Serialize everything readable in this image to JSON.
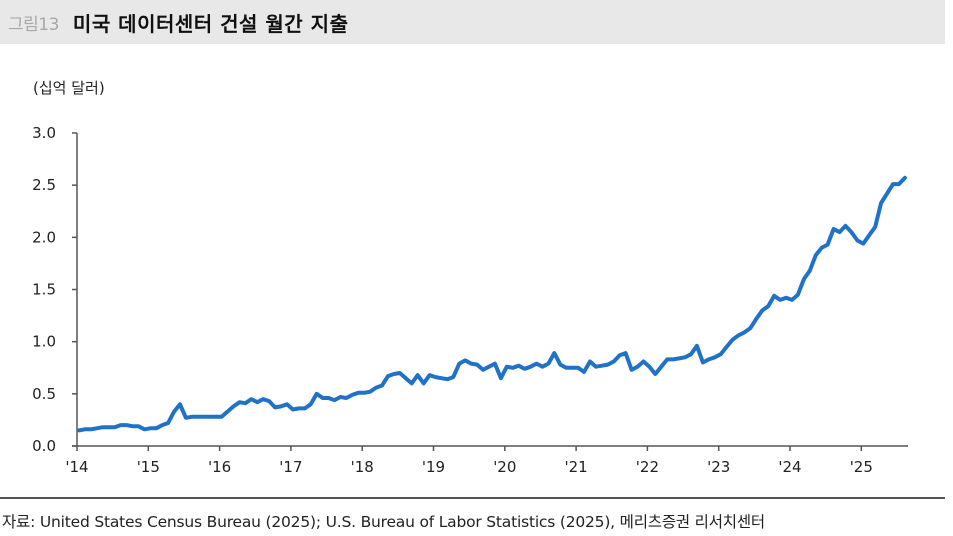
{
  "header": {
    "figure_label": "그림13",
    "title": "미국 데이터센터 건설 월간 지출"
  },
  "unit_label": "(십억 달러)",
  "footer": {
    "source": "자료: United States Census Bureau (2025); U.S. Bureau of Labor Statistics (2025), 메리츠증권 리서치센터"
  },
  "colors": {
    "line": "#1f72c8",
    "axis": "#555555",
    "title_bar_bg": "#e8e8e8"
  },
  "chart_data": {
    "type": "line",
    "title": "미국 데이터센터 건설 월간 지출",
    "xlabel": "",
    "ylabel": "(십억 달러)",
    "ylim": [
      0,
      3.0
    ],
    "yticks": [
      "0.0",
      "0.5",
      "1.0",
      "1.5",
      "2.0",
      "2.5",
      "3.0"
    ],
    "xticks": [
      "'14",
      "'15",
      "'16",
      "'17",
      "'18",
      "'19",
      "'20",
      "'21",
      "'22",
      "'23",
      "'24",
      "'25"
    ],
    "grid": false,
    "legend": null,
    "x_start": "2014-01",
    "x_end": "2025-08",
    "frequency": "monthly",
    "series": [
      {
        "name": "US data center construction spending",
        "values": [
          0.15,
          0.16,
          0.16,
          0.17,
          0.18,
          0.18,
          0.18,
          0.2,
          0.2,
          0.19,
          0.19,
          0.16,
          0.17,
          0.17,
          0.2,
          0.22,
          0.33,
          0.4,
          0.27,
          0.28,
          0.28,
          0.28,
          0.28,
          0.28,
          0.28,
          0.33,
          0.38,
          0.42,
          0.41,
          0.45,
          0.42,
          0.45,
          0.43,
          0.37,
          0.38,
          0.4,
          0.35,
          0.36,
          0.36,
          0.4,
          0.5,
          0.46,
          0.46,
          0.44,
          0.47,
          0.46,
          0.49,
          0.51,
          0.51,
          0.52,
          0.56,
          0.58,
          0.67,
          0.69,
          0.7,
          0.65,
          0.6,
          0.68,
          0.6,
          0.68,
          0.66,
          0.65,
          0.64,
          0.66,
          0.79,
          0.82,
          0.79,
          0.78,
          0.73,
          0.76,
          0.79,
          0.65,
          0.76,
          0.75,
          0.77,
          0.74,
          0.76,
          0.79,
          0.76,
          0.79,
          0.89,
          0.78,
          0.75,
          0.75,
          0.75,
          0.71,
          0.81,
          0.76,
          0.77,
          0.78,
          0.81,
          0.87,
          0.89,
          0.73,
          0.76,
          0.81,
          0.76,
          0.69,
          0.76,
          0.83,
          0.83,
          0.84,
          0.85,
          0.88,
          0.96,
          0.8,
          0.83,
          0.85,
          0.88,
          0.95,
          1.02,
          1.06,
          1.09,
          1.13,
          1.22,
          1.3,
          1.34,
          1.44,
          1.4,
          1.42,
          1.4,
          1.45,
          1.6,
          1.68,
          1.83,
          1.9,
          1.93,
          2.08,
          2.05,
          2.11,
          2.05,
          1.97,
          1.94,
          2.02,
          2.1,
          2.33,
          2.42,
          2.51,
          2.51,
          2.57
        ]
      }
    ]
  }
}
